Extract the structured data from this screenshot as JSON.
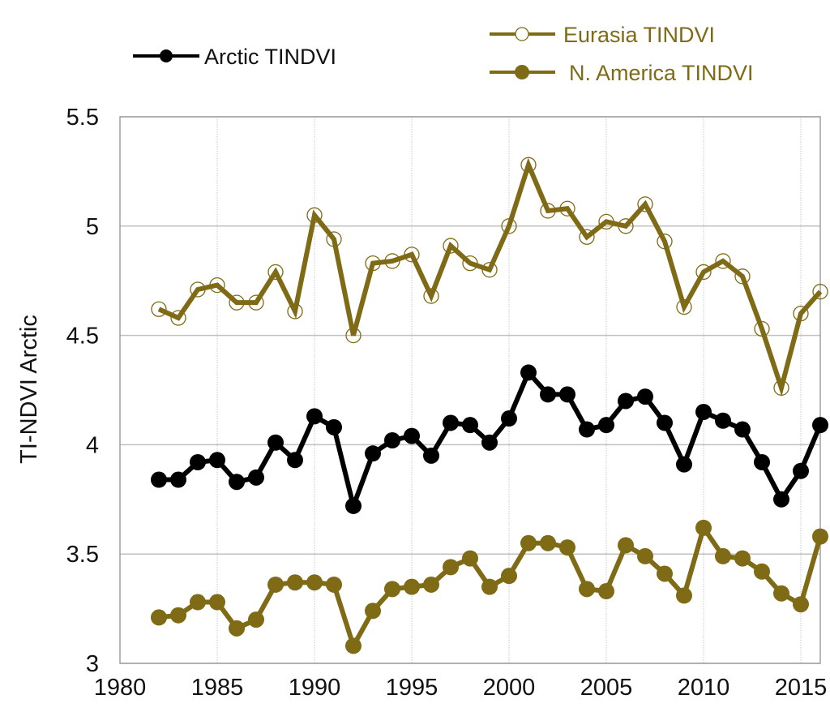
{
  "chart_data": {
    "type": "line",
    "title": "",
    "xlabel": "",
    "ylabel": "TI-NDVI Arctic",
    "xlim": [
      1980,
      2016
    ],
    "ylim": [
      3,
      5.5
    ],
    "xticks": [
      1980,
      1985,
      1990,
      1995,
      2000,
      2005,
      2010,
      2015
    ],
    "xtick_labels": [
      "1980",
      "1985",
      "1990",
      "1995",
      "2000",
      "2005",
      "2010",
      "2015"
    ],
    "yticks": [
      3,
      3.5,
      4,
      4.5,
      5,
      5.5
    ],
    "ytick_labels": [
      "3",
      "3.5",
      "4",
      "4.5",
      "5",
      "5.5"
    ],
    "grid": true,
    "legend_placement": "top",
    "x": [
      1982,
      1983,
      1984,
      1985,
      1986,
      1987,
      1988,
      1989,
      1990,
      1991,
      1992,
      1993,
      1994,
      1995,
      1996,
      1997,
      1998,
      1999,
      2000,
      2001,
      2002,
      2003,
      2004,
      2005,
      2006,
      2007,
      2008,
      2009,
      2010,
      2011,
      2012,
      2013,
      2014,
      2015,
      2016
    ],
    "series": [
      {
        "name": "Arctic TINDVI",
        "color": "#000000",
        "marker": "filled-circle",
        "values": [
          3.84,
          3.84,
          3.92,
          3.93,
          3.83,
          3.85,
          4.01,
          3.93,
          4.13,
          4.08,
          3.72,
          3.96,
          4.02,
          4.04,
          3.95,
          4.1,
          4.09,
          4.01,
          4.12,
          4.33,
          4.23,
          4.23,
          4.07,
          4.09,
          4.2,
          4.22,
          4.1,
          3.91,
          4.15,
          4.11,
          4.07,
          3.92,
          3.75,
          3.88,
          4.09
        ]
      },
      {
        "name": "Eurasia TINDVI",
        "color": "#7f6a15",
        "marker": "open-circle",
        "values": [
          4.62,
          4.58,
          4.71,
          4.73,
          4.65,
          4.65,
          4.79,
          4.61,
          5.05,
          4.94,
          4.5,
          4.83,
          4.84,
          4.87,
          4.68,
          4.91,
          4.83,
          4.8,
          5.0,
          5.28,
          5.07,
          5.08,
          4.95,
          5.02,
          5.0,
          5.1,
          4.93,
          4.63,
          4.79,
          4.84,
          4.77,
          4.53,
          4.26,
          4.6,
          4.7
        ]
      },
      {
        "name": "N. America TINDVI",
        "color": "#7f6a15",
        "marker": "filled-circle",
        "values": [
          3.21,
          3.22,
          3.28,
          3.28,
          3.16,
          3.2,
          3.36,
          3.37,
          3.37,
          3.36,
          3.08,
          3.24,
          3.34,
          3.35,
          3.36,
          3.44,
          3.48,
          3.35,
          3.4,
          3.55,
          3.55,
          3.53,
          3.34,
          3.33,
          3.54,
          3.49,
          3.41,
          3.31,
          3.62,
          3.49,
          3.48,
          3.42,
          3.32,
          3.27,
          3.58
        ]
      }
    ]
  }
}
